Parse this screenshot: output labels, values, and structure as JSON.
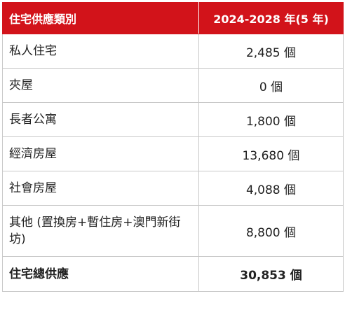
{
  "table": {
    "headers": {
      "type": "住宅供應類別",
      "units": "2024-2028 年(5 年)"
    },
    "rows": [
      {
        "type": "私人住宅",
        "units": "2,485 個"
      },
      {
        "type": "夾屋",
        "units": "0 個"
      },
      {
        "type": "長者公寓",
        "units": "1,800 個"
      },
      {
        "type": "經濟房屋",
        "units": "13,680 個"
      },
      {
        "type": "社會房屋",
        "units": "4,088 個"
      },
      {
        "type": "其他 (置換房+暫住房+澳門新街坊)",
        "units": "8,800 個"
      }
    ],
    "total": {
      "type": "住宅總供應",
      "units": "30,853 個"
    }
  },
  "colors": {
    "header_bg": "#d2131a",
    "header_text": "#ffffff",
    "border": "#c8c8c8"
  }
}
